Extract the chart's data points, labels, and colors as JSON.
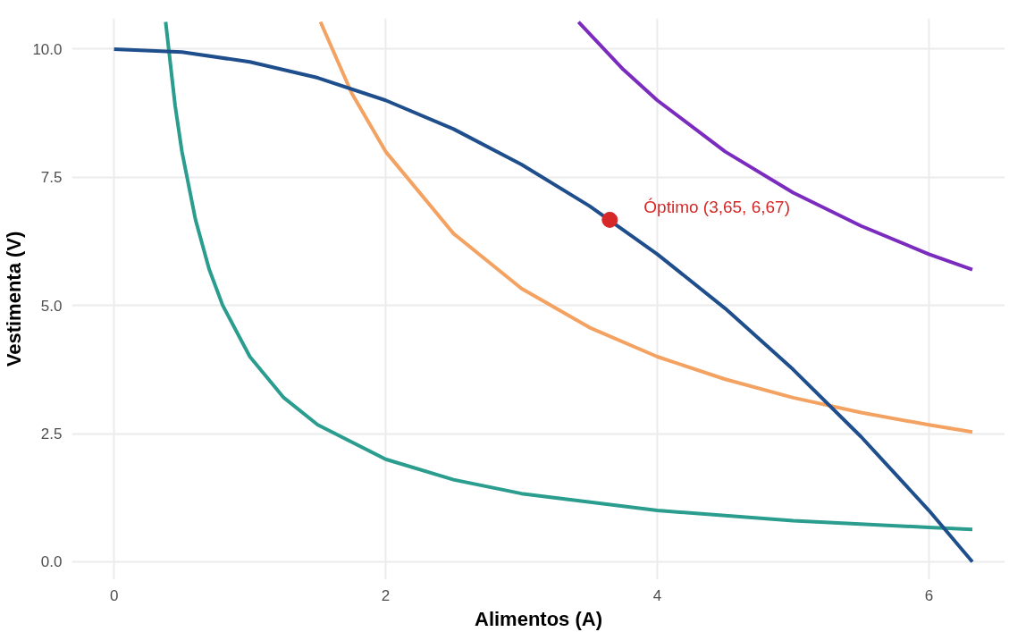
{
  "chart_data": {
    "type": "line",
    "xlabel": "Alimentos (A)",
    "ylabel": "Vestimenta (V)",
    "xlim": [
      -0.31,
      6.56
    ],
    "ylim": [
      -0.35,
      10.6
    ],
    "xticks": [
      0,
      2,
      4,
      6
    ],
    "yticks": [
      {
        "value": 0,
        "label": "0.0"
      },
      {
        "value": 2.5,
        "label": "2.5"
      },
      {
        "value": 5,
        "label": "5.0"
      },
      {
        "value": 7.5,
        "label": "7.5"
      },
      {
        "value": 10,
        "label": "10.0"
      }
    ],
    "grid": true,
    "line_style": "solid",
    "marker": "none",
    "series": [
      {
        "color": "#2a9d8f",
        "x": [
          0.38,
          0.45,
          0.5,
          0.6,
          0.7,
          0.8,
          1,
          1.25,
          1.5,
          2,
          2.5,
          3,
          4,
          5,
          6,
          6.32
        ],
        "values": [
          10.53,
          8.89,
          8,
          6.67,
          5.71,
          5,
          4,
          3.2,
          2.67,
          2,
          1.6,
          1.33,
          1,
          0.8,
          0.67,
          0.63
        ]
      },
      {
        "color": "#f4a261",
        "x": [
          1.52,
          1.75,
          2,
          2.5,
          3,
          3.5,
          4,
          4.5,
          5,
          5.5,
          6,
          6.32
        ],
        "values": [
          10.53,
          9.14,
          8,
          6.4,
          5.33,
          4.57,
          4,
          3.56,
          3.2,
          2.91,
          2.67,
          2.53
        ]
      },
      {
        "color": "#7b2cbf",
        "x": [
          3.42,
          3.75,
          4,
          4.5,
          5,
          5.5,
          6,
          6.32
        ],
        "values": [
          10.53,
          9.6,
          9,
          8,
          7.2,
          6.55,
          6,
          5.7
        ]
      },
      {
        "color": "#1f4e8c",
        "x": [
          0,
          0.5,
          1,
          1.5,
          2,
          2.5,
          3,
          3.5,
          4,
          4.5,
          5,
          5.5,
          6,
          6.32
        ],
        "values": [
          10,
          9.94,
          9.75,
          9.44,
          9,
          8.44,
          7.75,
          6.94,
          6,
          4.94,
          3.75,
          2.44,
          1,
          0
        ]
      },
      {
        "type": "scatter",
        "marker": "circle",
        "color": "#d62828",
        "x": [
          3.65
        ],
        "values": [
          6.67
        ]
      }
    ],
    "annotations": [
      {
        "text": "Óptimo (3,65, 6,67)",
        "x": 3.65,
        "y": 6.67
      }
    ]
  }
}
